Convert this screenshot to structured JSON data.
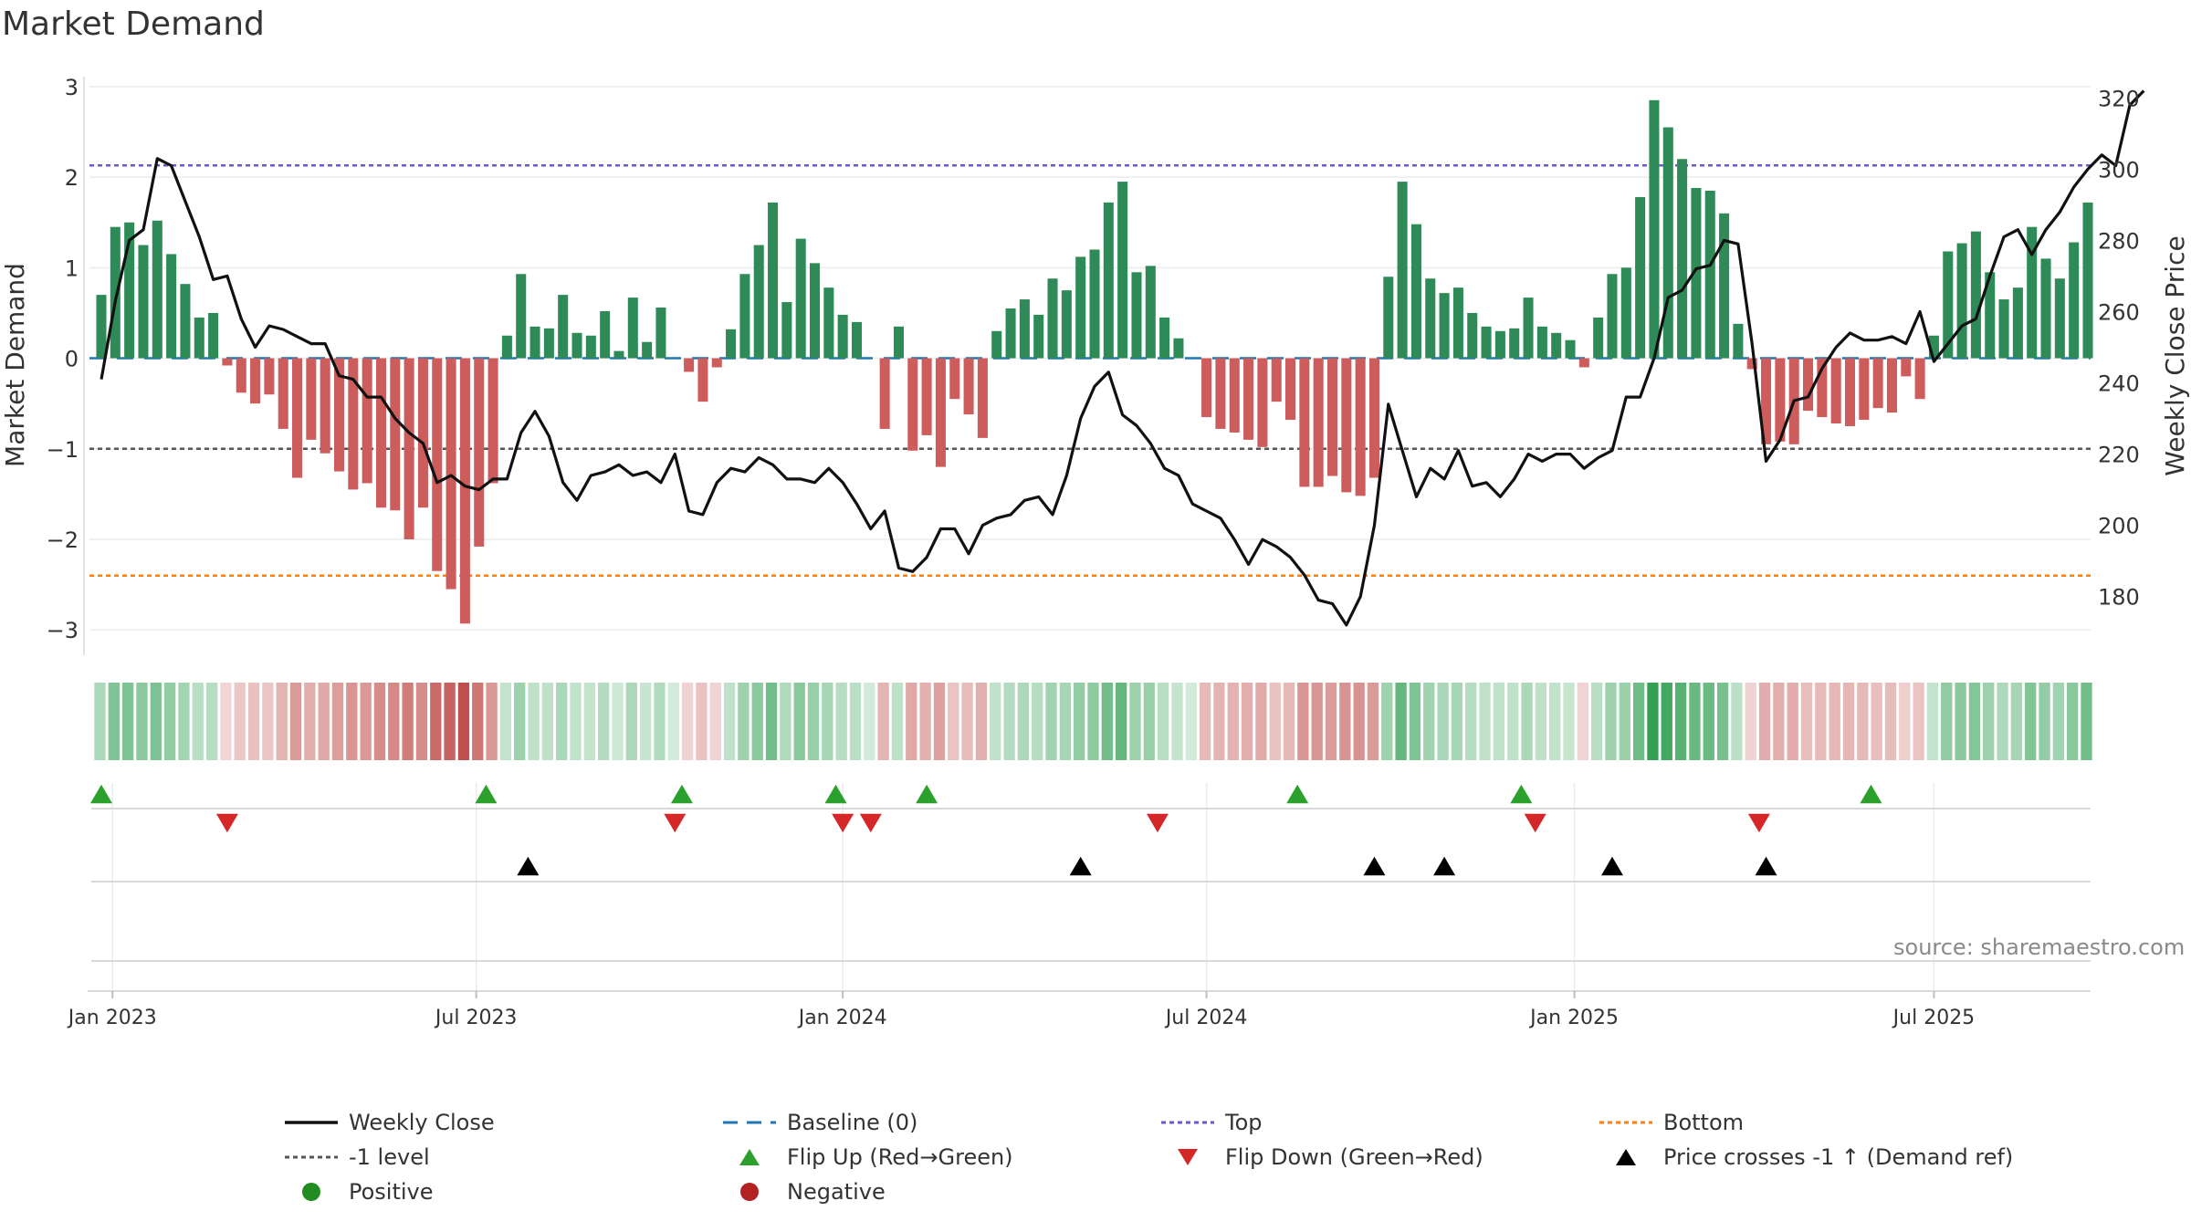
{
  "title": "Market Demand",
  "source_text": "source: sharemaestro.com",
  "colors": {
    "positive_bar": "#2e8b57",
    "negative_bar": "#cd5c5c",
    "price_line": "#111111",
    "baseline": "#1f77b4",
    "top_line": "#6a5acd",
    "minus1_line": "#555555",
    "bottom_line": "#ff7f0e",
    "flip_up": "#2ca02c",
    "flip_down": "#d62728",
    "cross_marker": "#000000",
    "positive_dot": "#228b22",
    "negative_dot": "#b22222"
  },
  "legend": [
    {
      "label": "Weekly Close",
      "symbol": "line-solid",
      "color": "#111111"
    },
    {
      "label": "Baseline (0)",
      "symbol": "line-dashed",
      "color": "#1f77b4"
    },
    {
      "label": "Top",
      "symbol": "line-dotted",
      "color": "#6a5acd"
    },
    {
      "label": "Bottom",
      "symbol": "line-dotted",
      "color": "#ff7f0e"
    },
    {
      "label": "-1 level",
      "symbol": "line-dotted",
      "color": "#555555"
    },
    {
      "label": "Flip Up (Red→Green)",
      "symbol": "triangle-up",
      "color": "#2ca02c"
    },
    {
      "label": "Flip Down (Green→Red)",
      "symbol": "triangle-down",
      "color": "#d62728"
    },
    {
      "label": "Price crosses -1 ↑ (Demand ref)",
      "symbol": "triangle-up",
      "color": "#000000"
    },
    {
      "label": "Positive",
      "symbol": "dot",
      "color": "#228b22"
    },
    {
      "label": "Negative",
      "symbol": "dot",
      "color": "#b22222"
    }
  ],
  "chart_data": {
    "type": "bar+line",
    "title": "Market Demand",
    "ylabel_left": "Market Demand",
    "ylabel_right": "Weekly Close Price",
    "ylim_left": [
      -3.3,
      3.15
    ],
    "yticks_left": [
      3,
      2,
      1,
      0,
      -1,
      -2,
      -3
    ],
    "ytick_labels_left": [
      "3",
      "2",
      "1",
      "0",
      "−1",
      "−2",
      "−3"
    ],
    "ylim_right": [
      163,
      327
    ],
    "yticks_right": [
      320,
      300,
      280,
      260,
      240,
      220,
      200,
      180
    ],
    "x_ticks": [
      "Jan 2023",
      "Jul 2023",
      "Jan 2024",
      "Jul 2024",
      "Jan 2025",
      "Jul 2025"
    ],
    "x_tick_weeks": [
      0.8,
      26.8,
      53,
      79,
      105.3,
      131
    ],
    "reference_lines": {
      "top": 2.13,
      "minus_one": -1.0,
      "bottom": -2.4,
      "baseline": 0
    },
    "demand": [
      0.7,
      1.45,
      1.5,
      1.25,
      1.52,
      1.15,
      0.82,
      0.45,
      0.5,
      -0.08,
      -0.38,
      -0.5,
      -0.4,
      -0.78,
      -1.32,
      -0.9,
      -1.05,
      -1.25,
      -1.45,
      -1.38,
      -1.65,
      -1.68,
      -2.0,
      -1.65,
      -2.35,
      -2.55,
      -2.93,
      -2.08,
      -1.38,
      0.25,
      0.93,
      0.35,
      0.33,
      0.7,
      0.28,
      0.25,
      0.52,
      0.08,
      0.67,
      0.18,
      0.56,
      0,
      -0.15,
      -0.48,
      -0.1,
      0.32,
      0.93,
      1.25,
      1.72,
      0.62,
      1.32,
      1.05,
      0.78,
      0.48,
      0.4,
      0,
      -0.78,
      0.35,
      -1.02,
      -0.85,
      -1.2,
      -0.45,
      -0.62,
      -0.88,
      0.3,
      0.55,
      0.65,
      0.48,
      0.88,
      0.75,
      1.12,
      1.2,
      1.72,
      1.95,
      0.95,
      1.02,
      0.45,
      0.22,
      0,
      -0.65,
      -0.78,
      -0.82,
      -0.9,
      -0.98,
      -0.48,
      -0.68,
      -1.42,
      -1.42,
      -1.3,
      -1.48,
      -1.52,
      -1.32,
      0.9,
      1.95,
      1.48,
      0.88,
      0.72,
      0.78,
      0.5,
      0.35,
      0.3,
      0.33,
      0.67,
      0.35,
      0.28,
      0.2,
      -0.1,
      0.45,
      0.93,
      1.0,
      1.78,
      2.85,
      2.55,
      2.2,
      1.88,
      1.85,
      1.6,
      0.38,
      -0.12,
      -0.95,
      -0.92,
      -0.95,
      -0.58,
      -0.65,
      -0.72,
      -0.75,
      -0.68,
      -0.55,
      -0.6,
      -0.2,
      -0.45,
      0.25,
      1.18,
      1.27,
      1.4,
      0.95,
      0.65,
      0.78,
      1.45,
      1.1,
      0.88,
      1.28,
      1.72
    ],
    "weekly_close": [
      241,
      263,
      280,
      283,
      303,
      301,
      291,
      281,
      269,
      270,
      258,
      250,
      256,
      255,
      253,
      251,
      251,
      242,
      241,
      236,
      236,
      230,
      226,
      223,
      212,
      214,
      211,
      210,
      213,
      213,
      226,
      232,
      225,
      212,
      207,
      214,
      215,
      217,
      214,
      215,
      212,
      220,
      204,
      203,
      212,
      216,
      215,
      219,
      217,
      213,
      213,
      212,
      216,
      212,
      206,
      199,
      204,
      188,
      187,
      191,
      199,
      199,
      192,
      200,
      202,
      203,
      207,
      208,
      203,
      214,
      230,
      239,
      243,
      231,
      228,
      223,
      216,
      214,
      206,
      204,
      202,
      196,
      189,
      196,
      194,
      191,
      186,
      179,
      178,
      172,
      180,
      200,
      234,
      221,
      208,
      216,
      213,
      221,
      211,
      212,
      208,
      213,
      220,
      218,
      220,
      220,
      216,
      219,
      221,
      236,
      236,
      247,
      264,
      266,
      272,
      273,
      280,
      279,
      251,
      218,
      224,
      235,
      236,
      244,
      250,
      254,
      252,
      252,
      253,
      251,
      260,
      246,
      251,
      256,
      258,
      270,
      281,
      283,
      276,
      283,
      288,
      295,
      300,
      304,
      301,
      318,
      322
    ],
    "flip_up_weeks": [
      0,
      27.5,
      41.5,
      52.5,
      59,
      85.5,
      101.5,
      126.5
    ],
    "flip_down_weeks": [
      9,
      41,
      53,
      55,
      75.5,
      102.5,
      118.5
    ],
    "price_cross_weeks": [
      30.5,
      70,
      91,
      96,
      108,
      119
    ]
  }
}
